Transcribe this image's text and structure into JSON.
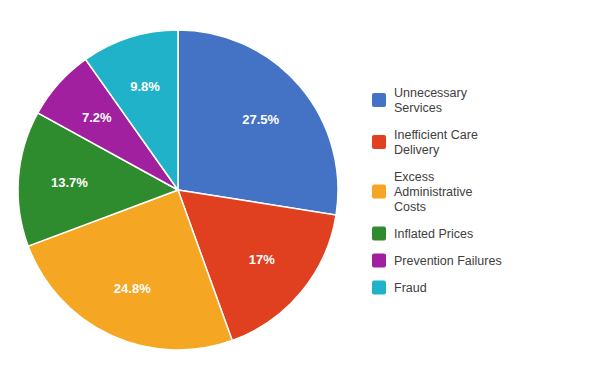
{
  "chart_data": {
    "type": "pie",
    "categories": [
      "Unnecessary\nServices",
      "Inefficient Care\nDelivery",
      "Excess\nAdministrative\nCosts",
      "Inflated Prices",
      "Prevention Failures",
      "Fraud"
    ],
    "values": [
      27.5,
      17,
      24.8,
      13.7,
      7.2,
      9.8
    ],
    "value_labels": [
      "27.5%",
      "17%",
      "24.8%",
      "13.7%",
      "7.2%",
      "9.8%"
    ],
    "colors": [
      "#4472C4",
      "#E04020",
      "#F5A623",
      "#2E8B2E",
      "#A020A0",
      "#20B2C8"
    ],
    "data_labels": true,
    "legend": "right"
  }
}
